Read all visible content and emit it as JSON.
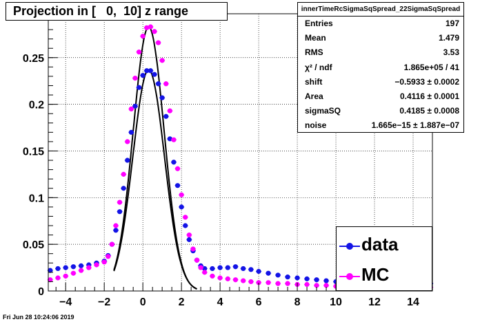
{
  "title": "Projection in [   0,  10] z range",
  "stats": {
    "header": "innerTimeRcSigmaSqSpread_22SigmaSqSpread",
    "rows": [
      {
        "key": "Entries",
        "value": "197"
      },
      {
        "key": "Mean",
        "value": "1.479"
      },
      {
        "key": "RMS",
        "value": "3.53"
      },
      {
        "key": "χ² / ndf",
        "value": "1.865e+05 / 41"
      },
      {
        "key": "shift",
        "value": "−0.5933 ± 0.0002"
      },
      {
        "key": "Area",
        "value": "0.4116 ± 0.0001"
      },
      {
        "key": "sigmaSQ",
        "value": "0.4185 ± 0.0008"
      },
      {
        "key": "noise",
        "value": "1.665e−15 ± 1.887e−07"
      }
    ]
  },
  "datestamp": "Fri Jun 28 10:24:06 2019",
  "colors": {
    "data": "#1414e6",
    "mc": "#ff00ff",
    "fit": "#000000"
  },
  "chart_data": {
    "type": "scatter",
    "xlim": [
      -4.9,
      15
    ],
    "ylim": [
      0,
      0.297
    ],
    "grid": true,
    "legend_position": "bottom-right",
    "x_ticks": [
      -4,
      -2,
      0,
      2,
      4,
      6,
      8,
      10,
      12,
      14
    ],
    "x_tick_labels": [
      "−4",
      "−2",
      "0",
      "2",
      "4",
      "6",
      "8",
      "10",
      "12",
      "14"
    ],
    "y_ticks": [
      0,
      0.05,
      0.1,
      0.15,
      0.2,
      0.25
    ],
    "y_tick_labels": [
      "0",
      "0.05",
      "0.1",
      "0.15",
      "0.2",
      "0.25"
    ],
    "series": [
      {
        "name": "data",
        "color": "#1414e6",
        "points": [
          [
            -4.8,
            0.022
          ],
          [
            -4.4,
            0.024
          ],
          [
            -4.0,
            0.025
          ],
          [
            -3.6,
            0.026
          ],
          [
            -3.2,
            0.027
          ],
          [
            -2.8,
            0.028
          ],
          [
            -2.4,
            0.03
          ],
          [
            -2.0,
            0.032
          ],
          [
            -1.8,
            0.038
          ],
          [
            -1.6,
            0.05
          ],
          [
            -1.4,
            0.065
          ],
          [
            -1.2,
            0.085
          ],
          [
            -1.0,
            0.11
          ],
          [
            -0.8,
            0.14
          ],
          [
            -0.6,
            0.17
          ],
          [
            -0.4,
            0.198
          ],
          [
            -0.2,
            0.218
          ],
          [
            0.0,
            0.231
          ],
          [
            0.2,
            0.236
          ],
          [
            0.4,
            0.236
          ],
          [
            0.6,
            0.232
          ],
          [
            0.8,
            0.222
          ],
          [
            1.0,
            0.207
          ],
          [
            1.2,
            0.187
          ],
          [
            1.4,
            0.163
          ],
          [
            1.6,
            0.138
          ],
          [
            1.8,
            0.113
          ],
          [
            2.0,
            0.09
          ],
          [
            2.2,
            0.07
          ],
          [
            2.4,
            0.055
          ],
          [
            2.6,
            0.043
          ],
          [
            2.8,
            0.033
          ],
          [
            3.0,
            0.027
          ],
          [
            3.2,
            0.024
          ],
          [
            3.6,
            0.024
          ],
          [
            4.0,
            0.025
          ],
          [
            4.4,
            0.025
          ],
          [
            4.8,
            0.026
          ],
          [
            5.2,
            0.024
          ],
          [
            5.6,
            0.023
          ],
          [
            6.0,
            0.021
          ],
          [
            6.5,
            0.019
          ],
          [
            7.0,
            0.017
          ],
          [
            7.5,
            0.015
          ],
          [
            8.0,
            0.014
          ],
          [
            8.5,
            0.013
          ],
          [
            9.0,
            0.012
          ],
          [
            9.5,
            0.011
          ],
          [
            10.0,
            0.01
          ],
          [
            10.5,
            0.009
          ],
          [
            11.0,
            0.009
          ],
          [
            11.5,
            0.008
          ],
          [
            12.0,
            0.008
          ],
          [
            12.5,
            0.007
          ],
          [
            13.0,
            0.007
          ],
          [
            13.5,
            0.007
          ],
          [
            14.0,
            0.007
          ],
          [
            14.5,
            0.007
          ],
          [
            14.9,
            0.008
          ]
        ]
      },
      {
        "name": "MC",
        "color": "#ff00ff",
        "points": [
          [
            -4.8,
            0.012
          ],
          [
            -4.4,
            0.014
          ],
          [
            -4.0,
            0.016
          ],
          [
            -3.6,
            0.019
          ],
          [
            -3.2,
            0.022
          ],
          [
            -2.8,
            0.025
          ],
          [
            -2.4,
            0.028
          ],
          [
            -2.0,
            0.031
          ],
          [
            -1.8,
            0.037
          ],
          [
            -1.6,
            0.05
          ],
          [
            -1.4,
            0.07
          ],
          [
            -1.2,
            0.095
          ],
          [
            -1.0,
            0.125
          ],
          [
            -0.8,
            0.16
          ],
          [
            -0.6,
            0.195
          ],
          [
            -0.4,
            0.228
          ],
          [
            -0.2,
            0.256
          ],
          [
            0.0,
            0.273
          ],
          [
            0.2,
            0.282
          ],
          [
            0.4,
            0.283
          ],
          [
            0.6,
            0.278
          ],
          [
            0.8,
            0.266
          ],
          [
            1.0,
            0.247
          ],
          [
            1.2,
            0.222
          ],
          [
            1.4,
            0.193
          ],
          [
            1.6,
            0.162
          ],
          [
            1.8,
            0.131
          ],
          [
            2.0,
            0.103
          ],
          [
            2.2,
            0.079
          ],
          [
            2.4,
            0.06
          ],
          [
            2.6,
            0.045
          ],
          [
            2.8,
            0.033
          ],
          [
            3.0,
            0.025
          ],
          [
            3.2,
            0.02
          ],
          [
            3.6,
            0.016
          ],
          [
            4.0,
            0.014
          ],
          [
            4.4,
            0.013
          ],
          [
            4.8,
            0.012
          ],
          [
            5.2,
            0.011
          ],
          [
            5.6,
            0.01
          ],
          [
            6.0,
            0.009
          ],
          [
            6.5,
            0.009
          ],
          [
            7.0,
            0.008
          ],
          [
            7.5,
            0.008
          ],
          [
            8.0,
            0.007
          ],
          [
            8.5,
            0.007
          ],
          [
            9.0,
            0.006
          ],
          [
            9.5,
            0.006
          ],
          [
            10.0,
            0.005
          ],
          [
            10.5,
            0.005
          ],
          [
            11.0,
            0.005
          ],
          [
            11.5,
            0.005
          ],
          [
            12.0,
            0.004
          ],
          [
            12.5,
            0.004
          ],
          [
            13.0,
            0.004
          ],
          [
            13.5,
            0.004
          ],
          [
            14.0,
            0.004
          ],
          [
            14.5,
            0.004
          ],
          [
            14.9,
            0.004
          ]
        ]
      }
    ],
    "fits": [
      {
        "peak": 0.237,
        "center": 0.3,
        "sigma": 0.82,
        "x_range": [
          -1.5,
          2.8
        ]
      },
      {
        "peak": 0.283,
        "center": 0.3,
        "sigma": 0.8,
        "x_range": [
          -1.5,
          2.8
        ]
      }
    ],
    "legend": [
      {
        "label": "data",
        "color": "#1414e6"
      },
      {
        "label": "MC",
        "color": "#ff00ff"
      }
    ]
  }
}
